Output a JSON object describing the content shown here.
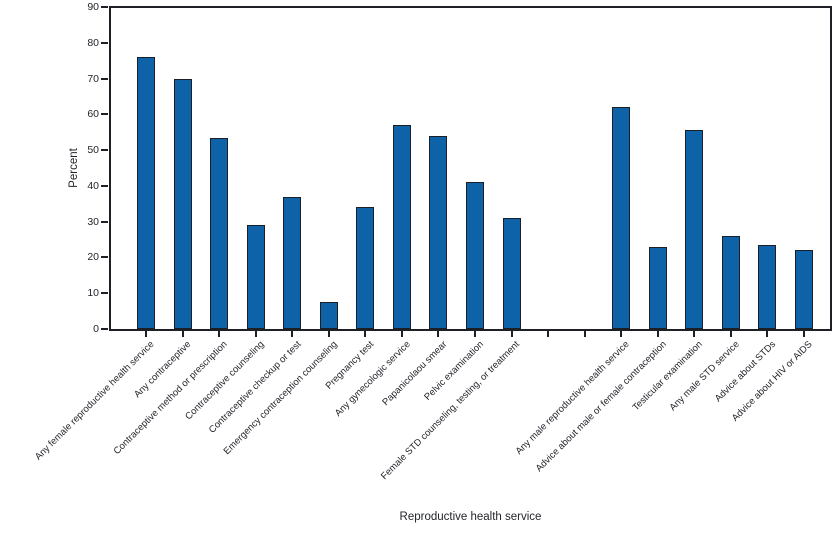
{
  "chart_data": {
    "type": "bar",
    "title": "",
    "xlabel": "Reproductive health service",
    "ylabel": "Percent",
    "ylim": [
      0,
      90
    ],
    "ytick_step": 10,
    "yticks": [
      0,
      10,
      20,
      30,
      40,
      50,
      60,
      70,
      80,
      90
    ],
    "grid": false,
    "legend": null,
    "bar_color": "#0D62A8",
    "bar_border_color": "#1B2028",
    "axis_color": "#1E2025",
    "text_color": "#23252B",
    "categories": [
      "Any female reproductive health service",
      "Any contraceptive",
      "Contraceptive method or prescription",
      "Contraceptive counseling",
      "Contraceptive checkup or test",
      "Emergency contraception counseling",
      "Pregnancy test",
      "Any gynecologic service",
      "Papanicolaou smear",
      "Pelvic examination",
      "Female STD counseling, testing, or treatment",
      "Any male reproductive health service",
      "Advice about male or female contraception",
      "Testicular examination",
      "Any male STD service",
      "Advice about STDs",
      "Advice about HIV or AIDS"
    ],
    "values": [
      76,
      70,
      53.5,
      29,
      37,
      7.5,
      34,
      57,
      54,
      41,
      31,
      62,
      23,
      55.5,
      26,
      23.5,
      22
    ],
    "group_gap": {
      "after_category_index": 10,
      "empty_slots": 2
    }
  }
}
